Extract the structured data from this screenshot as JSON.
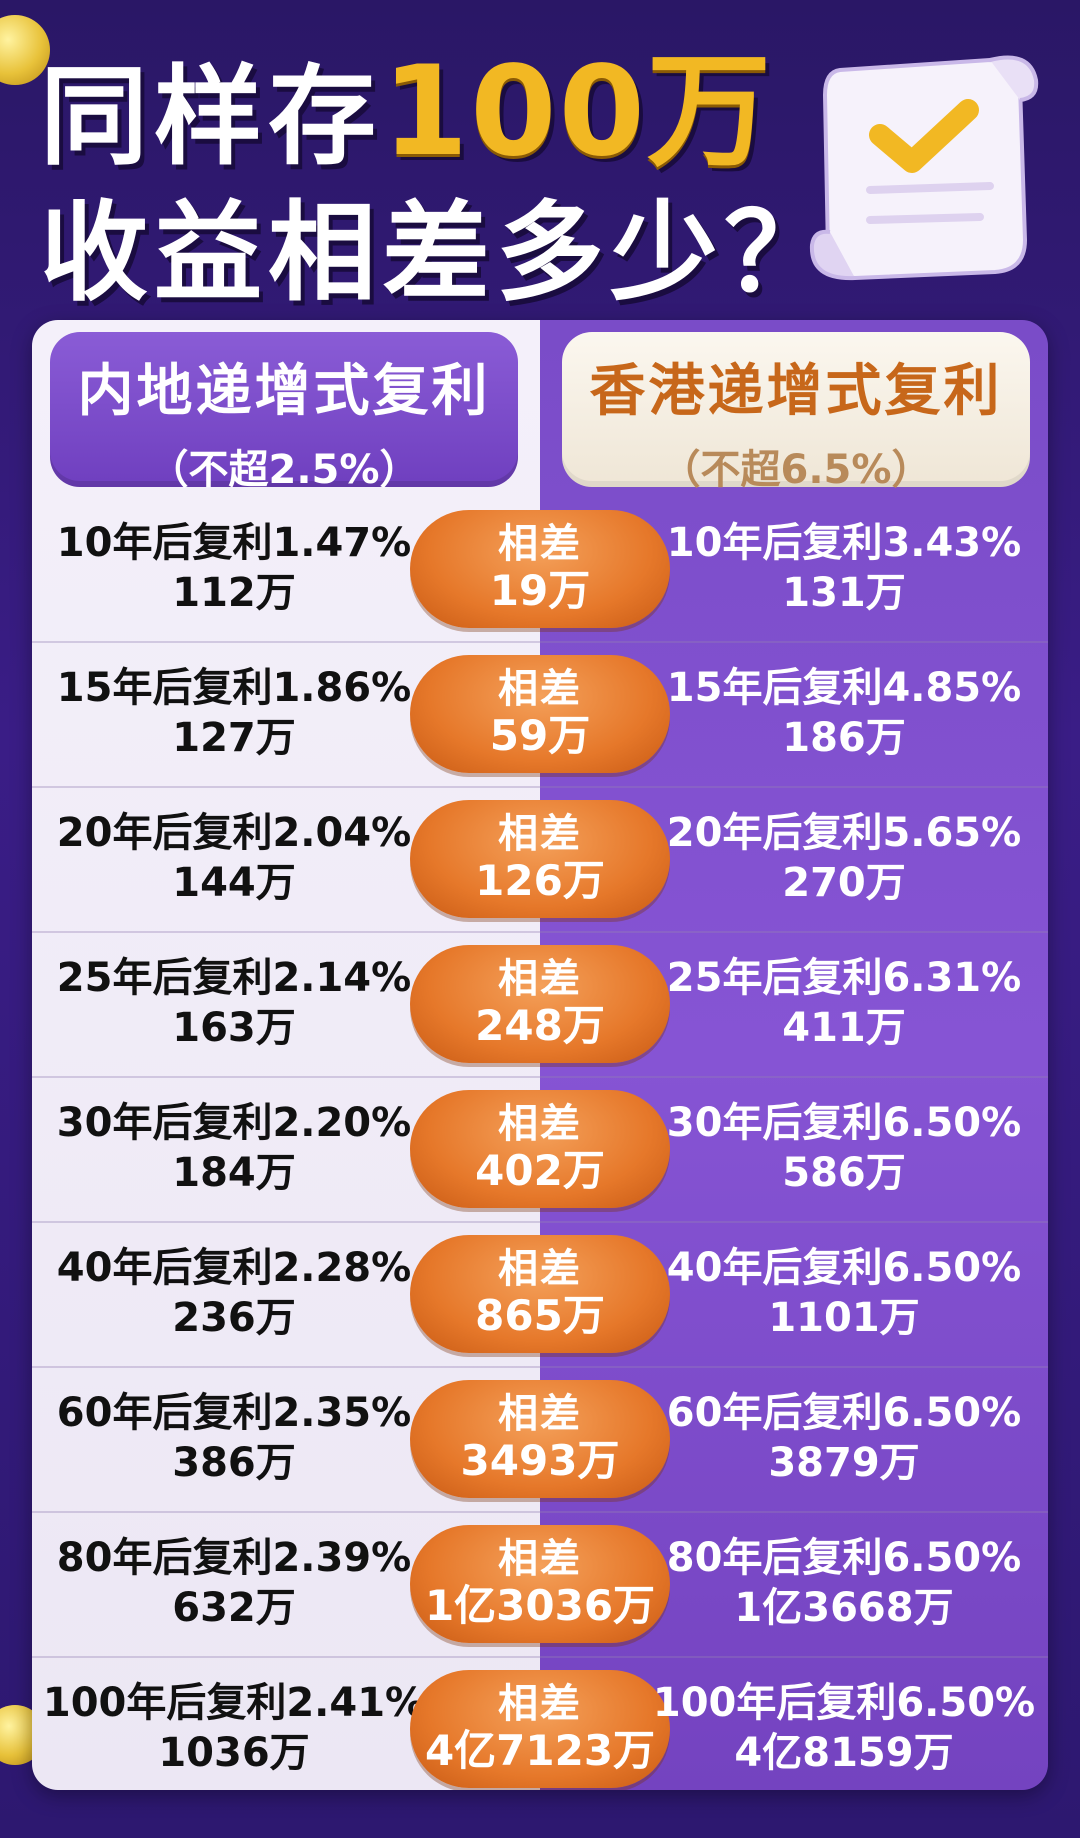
{
  "title": {
    "line1_prefix": "同样存",
    "line1_highlight": "100万",
    "line2": "收益相差多少？"
  },
  "columns": {
    "left": {
      "heading": "内地递增式复利",
      "subheading": "（不超2.5%）"
    },
    "right": {
      "heading": "香港递增式复利",
      "subheading": "（不超6.5%）"
    }
  },
  "diff_label": "相差",
  "rows": [
    {
      "left_rate": "10年后复利1.47%",
      "left_amount": "112万",
      "diff": "19万",
      "right_rate": "10年后复利3.43%",
      "right_amount": "131万"
    },
    {
      "left_rate": "15年后复利1.86%",
      "left_amount": "127万",
      "diff": "59万",
      "right_rate": "15年后复利4.85%",
      "right_amount": "186万"
    },
    {
      "left_rate": "20年后复利2.04%",
      "left_amount": "144万",
      "diff": "126万",
      "right_rate": "20年后复利5.65%",
      "right_amount": "270万"
    },
    {
      "left_rate": "25年后复利2.14%",
      "left_amount": "163万",
      "diff": "248万",
      "right_rate": "25年后复利6.31%",
      "right_amount": "411万"
    },
    {
      "left_rate": "30年后复利2.20%",
      "left_amount": "184万",
      "diff": "402万",
      "right_rate": "30年后复利6.50%",
      "right_amount": "586万"
    },
    {
      "left_rate": "40年后复利2.28%",
      "left_amount": "236万",
      "diff": "865万",
      "right_rate": "40年后复利6.50%",
      "right_amount": "1101万"
    },
    {
      "left_rate": "60年后复利2.35%",
      "left_amount": "386万",
      "diff": "3493万",
      "right_rate": "60年后复利6.50%",
      "right_amount": "3879万"
    },
    {
      "left_rate": "80年后复利2.39%",
      "left_amount": "632万",
      "diff": "1亿3036万",
      "right_rate": "80年后复利6.50%",
      "right_amount": "1亿3668万"
    },
    {
      "left_rate": "100年后复利2.41%",
      "left_amount": "1036万",
      "diff": "4亿7123万",
      "right_rate": "100年后复利6.50%",
      "right_amount": "4亿8159万"
    }
  ],
  "colors": {
    "background": "#2d1870",
    "title_highlight": "#f2b823",
    "left_panel": "#f2eef8",
    "right_panel": "#8050cc",
    "diff_pill": "#e6782a",
    "right_heading_text": "#c7671a"
  },
  "icons": [
    "document-check-icon",
    "coin-icon"
  ]
}
